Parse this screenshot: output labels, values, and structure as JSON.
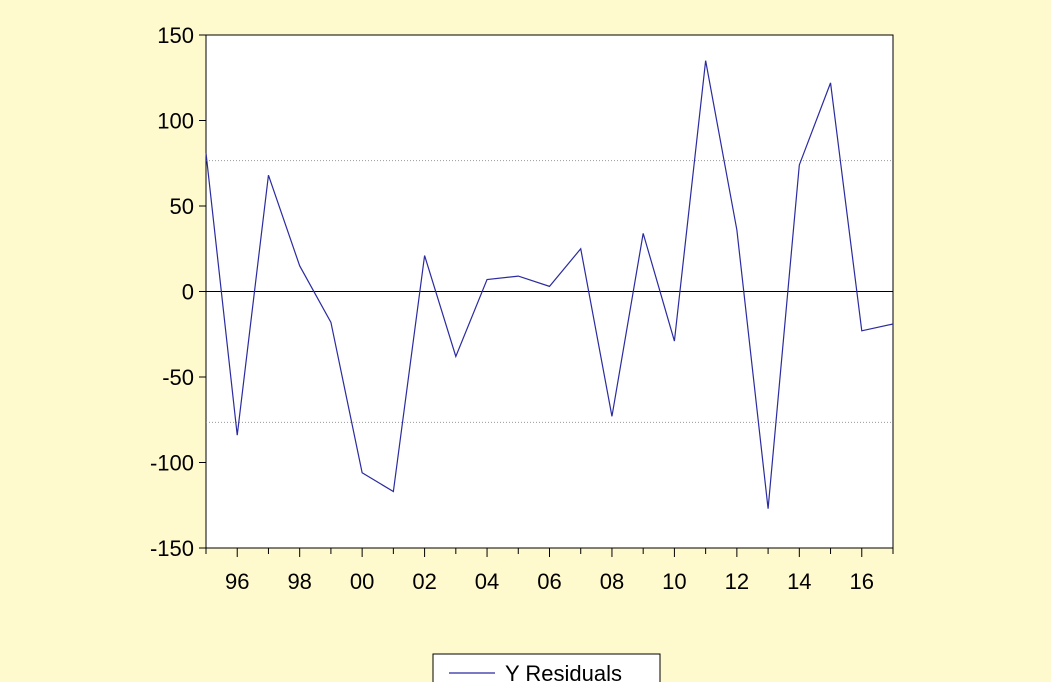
{
  "colors": {
    "background": "#FFFACD",
    "plot_background": "#FFFFFF",
    "series_line": "#2B2BA0",
    "zero_line": "#000000",
    "band_line": "#999999"
  },
  "chart_data": {
    "type": "line",
    "title": "",
    "xlabel": "",
    "ylabel": "",
    "xlim": [
      1995,
      2017
    ],
    "ylim": [
      -150,
      150
    ],
    "yticks": [
      -150,
      -100,
      -50,
      0,
      50,
      100,
      150
    ],
    "ytick_labels": [
      "-150",
      "-100",
      "-50",
      "0",
      "50",
      "100",
      "150"
    ],
    "xticks": [
      1996,
      1998,
      2000,
      2002,
      2004,
      2006,
      2008,
      2010,
      2012,
      2014,
      2016
    ],
    "xtick_labels": [
      "96",
      "98",
      "00",
      "02",
      "04",
      "06",
      "08",
      "10",
      "12",
      "14",
      "16"
    ],
    "reference_lines": [
      {
        "y": 0,
        "style": "solid"
      },
      {
        "y": 76.5,
        "style": "dotted"
      },
      {
        "y": -76.5,
        "style": "dotted"
      }
    ],
    "grid": false,
    "legend_position": "bottom-center",
    "x": [
      1995,
      1996,
      1997,
      1998,
      1999,
      2000,
      2001,
      2002,
      2003,
      2004,
      2005,
      2006,
      2007,
      2008,
      2009,
      2010,
      2011,
      2012,
      2013,
      2014,
      2015,
      2016,
      2017
    ],
    "series": [
      {
        "name": "Y Residuals",
        "values": [
          81,
          -84,
          68,
          15,
          -18,
          -106,
          -117,
          21,
          -38,
          7,
          9,
          3,
          25,
          -73,
          34,
          -29,
          135,
          36,
          -127,
          74,
          122,
          -23,
          -19
        ]
      }
    ]
  }
}
